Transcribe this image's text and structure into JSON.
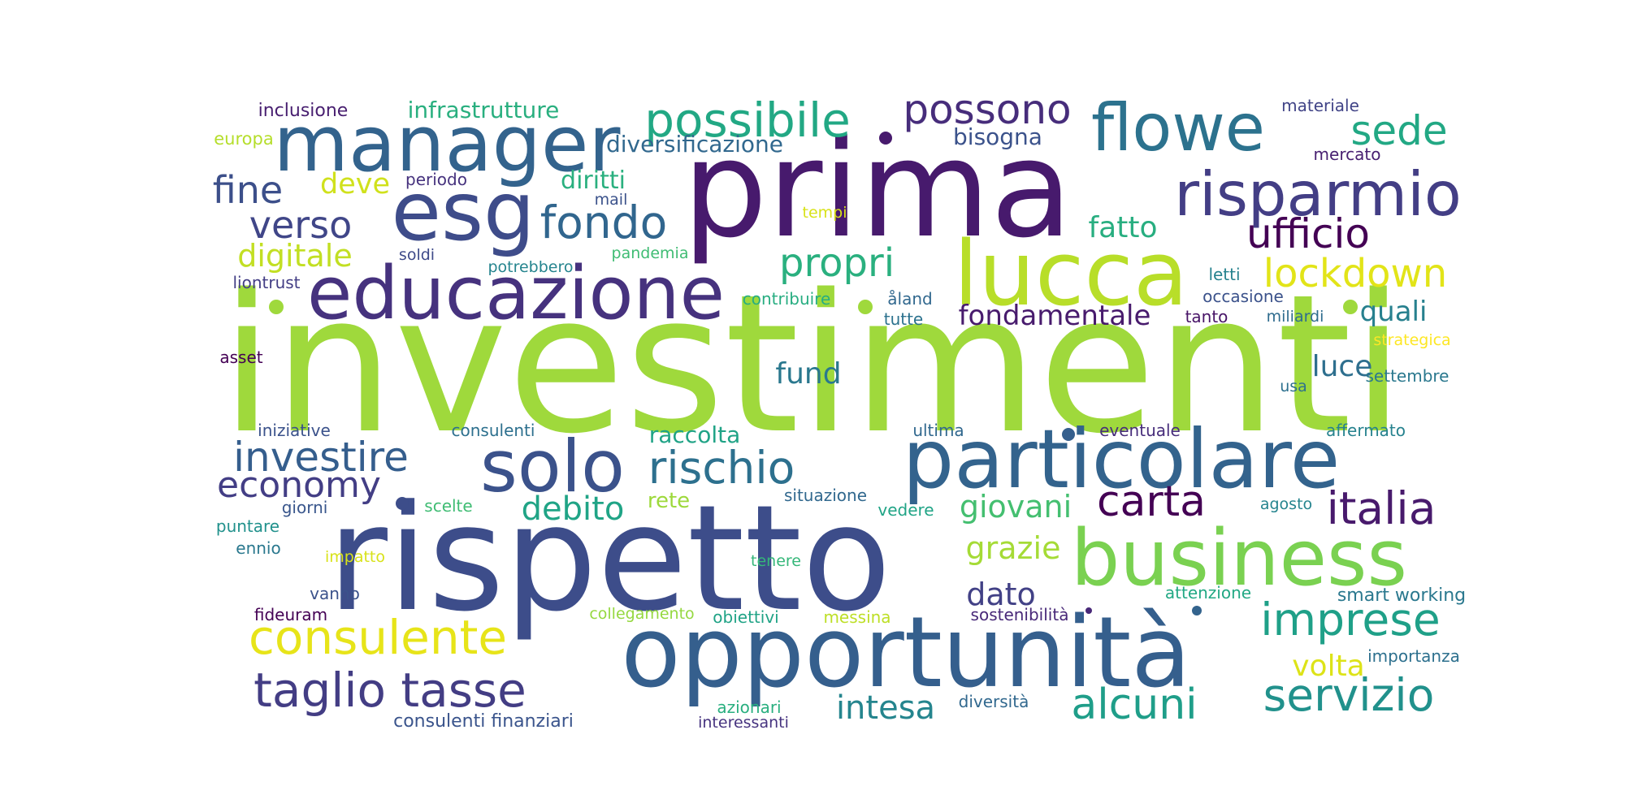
{
  "cloud": {
    "words": [
      {
        "text": "investimenti",
        "color": "#9fd93c"
      },
      {
        "text": "rispetto",
        "color": "#3d4d8a"
      },
      {
        "text": "prima",
        "color": "#471a6d"
      },
      {
        "text": "opportunità",
        "color": "#355f8d"
      },
      {
        "text": "particolare",
        "color": "#33638d"
      },
      {
        "text": "lucca",
        "color": "#b8de29"
      },
      {
        "text": "business",
        "color": "#7ad151"
      },
      {
        "text": "manager",
        "color": "#33638d"
      },
      {
        "text": "educazione",
        "color": "#46327e"
      },
      {
        "text": "esg",
        "color": "#3e4c8a"
      },
      {
        "text": "solo",
        "color": "#3b528b"
      },
      {
        "text": "flowe",
        "color": "#2c728e"
      },
      {
        "text": "risparmio",
        "color": "#433e85"
      },
      {
        "text": "taglio tasse",
        "color": "#433d84"
      },
      {
        "text": "consulente",
        "color": "#e7e419"
      },
      {
        "text": "rischio",
        "color": "#2d708e"
      },
      {
        "text": "possibile",
        "color": "#22a884"
      },
      {
        "text": "fondo",
        "color": "#31668e"
      },
      {
        "text": "possono",
        "color": "#472d7b"
      },
      {
        "text": "imprese",
        "color": "#1fa088"
      },
      {
        "text": "servizio",
        "color": "#21918c"
      },
      {
        "text": "italia",
        "color": "#481a6c"
      },
      {
        "text": "carta",
        "color": "#440154"
      },
      {
        "text": "alcuni",
        "color": "#1f9e89"
      },
      {
        "text": "investire",
        "color": "#355e8d"
      },
      {
        "text": "ufficio",
        "color": "#440154"
      },
      {
        "text": "lockdown",
        "color": "#e2e418"
      },
      {
        "text": "sede",
        "color": "#22a884"
      },
      {
        "text": "propri",
        "color": "#2ab07f"
      },
      {
        "text": "economy",
        "color": "#433e85"
      },
      {
        "text": "verso",
        "color": "#404688"
      },
      {
        "text": "fine",
        "color": "#3c4f8a"
      },
      {
        "text": "intesa",
        "color": "#25858e"
      },
      {
        "text": "debito",
        "color": "#20a486"
      },
      {
        "text": "dato",
        "color": "#424186"
      },
      {
        "text": "giovani",
        "color": "#44bf70"
      },
      {
        "text": "grazie",
        "color": "#a5db36"
      },
      {
        "text": "digitale",
        "color": "#c2df23"
      },
      {
        "text": "volta",
        "color": "#dde318"
      },
      {
        "text": "fondamentale",
        "color": "#481b6d"
      },
      {
        "text": "quali",
        "color": "#27808e"
      },
      {
        "text": "fatto",
        "color": "#28ae80"
      },
      {
        "text": "fund",
        "color": "#2a788e"
      },
      {
        "text": "luce",
        "color": "#2e6f8e"
      },
      {
        "text": "deve",
        "color": "#d0e11c"
      },
      {
        "text": "diritti",
        "color": "#2ab07f"
      },
      {
        "text": "infrastrutture",
        "color": "#29af7f"
      },
      {
        "text": "diversificazione",
        "color": "#31688e"
      },
      {
        "text": "bisogna",
        "color": "#3b528b"
      },
      {
        "text": "raccolta",
        "color": "#20a386"
      },
      {
        "text": "rete",
        "color": "#9dd93b"
      },
      {
        "text": "consulenti finanziari",
        "color": "#3a548c"
      },
      {
        "text": "smart working",
        "color": "#2a788e"
      },
      {
        "text": "inclusione",
        "color": "#481f70"
      },
      {
        "text": "europa",
        "color": "#b5de2b"
      },
      {
        "text": "periodo",
        "color": "#46327e"
      },
      {
        "text": "mail",
        "color": "#3b528b"
      },
      {
        "text": "tempi",
        "color": "#d8e219"
      },
      {
        "text": "soldi",
        "color": "#3e4a89"
      },
      {
        "text": "potrebbero",
        "color": "#25848e"
      },
      {
        "text": "pandemia",
        "color": "#3fbc73"
      },
      {
        "text": "liontrust",
        "color": "#433e85"
      },
      {
        "text": "contribuire",
        "color": "#27ad81"
      },
      {
        "text": "åland",
        "color": "#31688e"
      },
      {
        "text": "tutte",
        "color": "#2c728e"
      },
      {
        "text": "letti",
        "color": "#26828e"
      },
      {
        "text": "occasione",
        "color": "#3b528b"
      },
      {
        "text": "tanto",
        "color": "#481467"
      },
      {
        "text": "miliardi",
        "color": "#2f6c8e"
      },
      {
        "text": "strategica",
        "color": "#fde725"
      },
      {
        "text": "materiale",
        "color": "#414487"
      },
      {
        "text": "mercato",
        "color": "#482071"
      },
      {
        "text": "asset",
        "color": "#440154"
      },
      {
        "text": "settembre",
        "color": "#2a788e"
      },
      {
        "text": "usa",
        "color": "#2d708e"
      },
      {
        "text": "iniziative",
        "color": "#3b528b"
      },
      {
        "text": "consulenti",
        "color": "#2d708e"
      },
      {
        "text": "ultima",
        "color": "#31688e"
      },
      {
        "text": "eventuale",
        "color": "#472d7b"
      },
      {
        "text": "affermato",
        "color": "#26828e"
      },
      {
        "text": "giorni",
        "color": "#39568c"
      },
      {
        "text": "scelte",
        "color": "#3fbc73"
      },
      {
        "text": "situazione",
        "color": "#31688e"
      },
      {
        "text": "vedere",
        "color": "#20a486"
      },
      {
        "text": "agosto",
        "color": "#25848e"
      },
      {
        "text": "puntare",
        "color": "#21918c"
      },
      {
        "text": "ennio",
        "color": "#2a788e"
      },
      {
        "text": "impatto",
        "color": "#d8e219"
      },
      {
        "text": "tenere",
        "color": "#35b779"
      },
      {
        "text": "vanno",
        "color": "#3b528b"
      },
      {
        "text": "attenzione",
        "color": "#22a884"
      },
      {
        "text": "fideuram",
        "color": "#440154"
      },
      {
        "text": "collegamento",
        "color": "#95d840"
      },
      {
        "text": "obiettivi",
        "color": "#20a386"
      },
      {
        "text": "messina",
        "color": "#bddf26"
      },
      {
        "text": "sostenibilità",
        "color": "#482878"
      },
      {
        "text": "importanza",
        "color": "#2d708e"
      },
      {
        "text": "azionari",
        "color": "#29af7f"
      },
      {
        "text": "diversità",
        "color": "#31688e"
      },
      {
        "text": "interessanti",
        "color": "#46337f"
      }
    ],
    "dots": [
      {
        "color": "#471a6d"
      },
      {
        "color": "#9fd93c"
      },
      {
        "color": "#9fd93c"
      },
      {
        "color": "#9fd93c"
      },
      {
        "color": "#355f8d"
      },
      {
        "color": "#33638d"
      },
      {
        "color": "#3d4d8a"
      },
      {
        "color": "#482878"
      }
    ]
  }
}
